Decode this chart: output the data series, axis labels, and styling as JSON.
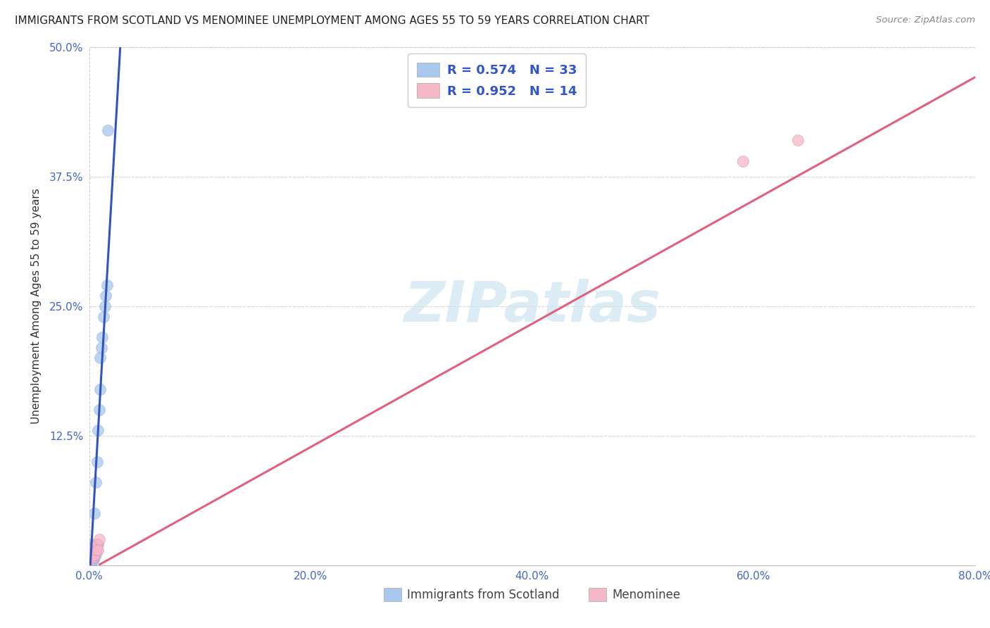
{
  "title": "IMMIGRANTS FROM SCOTLAND VS MENOMINEE UNEMPLOYMENT AMONG AGES 55 TO 59 YEARS CORRELATION CHART",
  "source": "Source: ZipAtlas.com",
  "ylabel": "Unemployment Among Ages 55 to 59 years",
  "xlim": [
    0.0,
    0.8
  ],
  "ylim": [
    0.0,
    0.5
  ],
  "xticks": [
    0.0,
    0.2,
    0.4,
    0.6,
    0.8
  ],
  "xticklabels": [
    "0.0%",
    "20.0%",
    "40.0%",
    "60.0%",
    "80.0%"
  ],
  "yticks": [
    0.0,
    0.125,
    0.25,
    0.375,
    0.5
  ],
  "yticklabels": [
    "",
    "12.5%",
    "25.0%",
    "37.5%",
    "50.0%"
  ],
  "grid_color": "#d8d8d8",
  "background_color": "#ffffff",
  "watermark": "ZIPatlas",
  "watermark_color": "#cce4f0",
  "scotland_color": "#a8c8ee",
  "scotland_edge_color": "#8ab0e0",
  "scotland_line_color": "#3355bb",
  "menominee_color": "#f5b8c8",
  "menominee_edge_color": "#e090a8",
  "menominee_line_color": "#e06080",
  "R_scotland": 0.574,
  "N_scotland": 33,
  "R_menominee": 0.952,
  "N_menominee": 14,
  "tick_color": "#4466cc",
  "title_color": "#222222",
  "source_color": "#888888",
  "ylabel_color": "#333333",
  "scotland_x": [
    0.001,
    0.001,
    0.001,
    0.002,
    0.002,
    0.002,
    0.002,
    0.003,
    0.003,
    0.003,
    0.003,
    0.004,
    0.004,
    0.004,
    0.005,
    0.005,
    0.005,
    0.006,
    0.006,
    0.007,
    0.007,
    0.008,
    0.008,
    0.009,
    0.01,
    0.01,
    0.011,
    0.012,
    0.013,
    0.014,
    0.015,
    0.016,
    0.017
  ],
  "scotland_y": [
    0.002,
    0.005,
    0.008,
    0.003,
    0.006,
    0.01,
    0.015,
    0.004,
    0.007,
    0.012,
    0.02,
    0.005,
    0.01,
    0.018,
    0.008,
    0.015,
    0.05,
    0.01,
    0.08,
    0.015,
    0.1,
    0.02,
    0.13,
    0.15,
    0.17,
    0.2,
    0.21,
    0.22,
    0.24,
    0.25,
    0.26,
    0.27,
    0.42
  ],
  "menominee_x": [
    0.001,
    0.002,
    0.003,
    0.003,
    0.004,
    0.004,
    0.005,
    0.005,
    0.006,
    0.007,
    0.008,
    0.009,
    0.59,
    0.64
  ],
  "menominee_y": [
    0.005,
    0.008,
    0.01,
    0.015,
    0.008,
    0.012,
    0.01,
    0.018,
    0.015,
    0.02,
    0.015,
    0.025,
    0.39,
    0.41
  ],
  "sc_line_slope": 18.5,
  "sc_line_intercept": -0.02,
  "men_line_slope": 0.595,
  "men_line_intercept": -0.005
}
